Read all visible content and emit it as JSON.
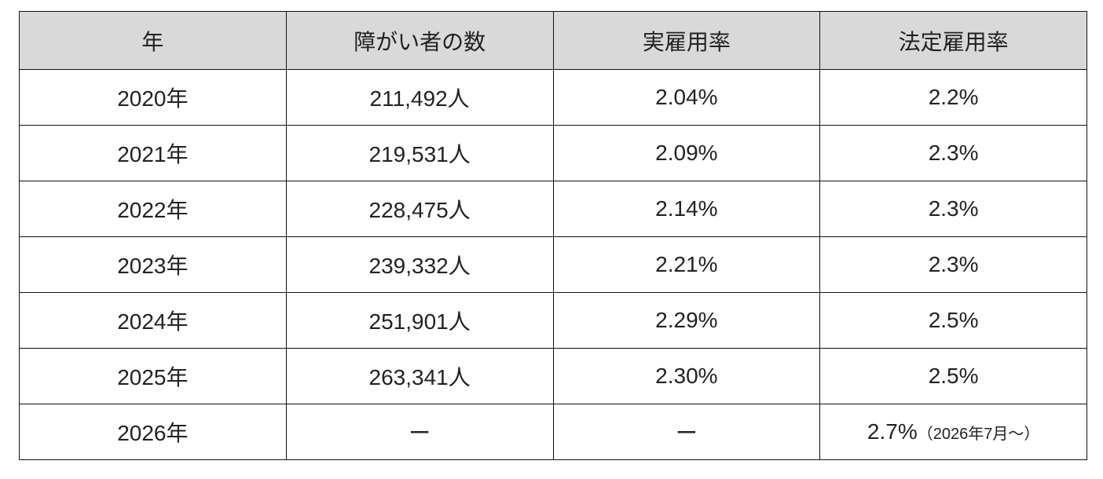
{
  "table": {
    "header": [
      "年",
      "障がい者の数",
      "実雇用率",
      "法定雇用率"
    ],
    "rows": [
      [
        "2020年",
        "211,492人",
        "2.04%",
        "2.2%"
      ],
      [
        "2021年",
        "219,531人",
        "2.09%",
        "2.3%"
      ],
      [
        "2022年",
        "228,475人",
        "2.14%",
        "2.3%"
      ],
      [
        "2023年",
        "239,332人",
        "2.21%",
        "2.3%"
      ],
      [
        "2024年",
        "251,901人",
        "2.29%",
        "2.5%"
      ],
      [
        "2025年",
        "263,341人",
        "2.30%",
        "2.5%"
      ],
      [
        "2026年",
        "ー",
        "ー",
        {
          "main": "2.7%",
          "note": "（2026年7月〜）"
        }
      ]
    ]
  }
}
